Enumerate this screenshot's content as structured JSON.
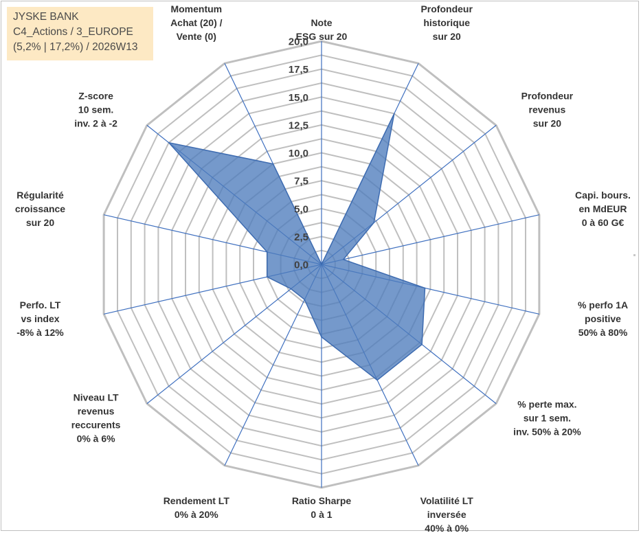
{
  "info": {
    "line1": "JYSKE BANK",
    "line2": "C4_Actions / 3_EUROPE",
    "line3": "(5,2% | 17,2%) / 2026W13"
  },
  "colors": {
    "fill": "#4e7cbd",
    "edge": "#3d6bb0",
    "spokes": "#3e6fbf",
    "rings": "#bfbfbf",
    "info_bg": "#fde9c4"
  },
  "chart_data": {
    "type": "radar",
    "title": "",
    "rmin": 0,
    "rmax": 20,
    "ticks": [
      "0,0",
      "2,5",
      "5,0",
      "7,5",
      "10,0",
      "12,5",
      "15,0",
      "17,5",
      "20,0"
    ],
    "tick_values": [
      0,
      2.5,
      5,
      7.5,
      10,
      12.5,
      15,
      17.5,
      20
    ],
    "categories": [
      [
        "Note",
        "ESG sur 20"
      ],
      [
        "Profondeur",
        "historique",
        "sur 20"
      ],
      [
        "Profondeur",
        "revenus",
        "sur 20"
      ],
      [
        "Capi. bours.",
        "en MdEUR",
        "0 à 60 G€"
      ],
      [
        "% perfo 1A",
        "positive",
        "50% à 80%"
      ],
      [
        "% perte max.",
        "sur 1 sem.",
        "inv. 50% à 20%"
      ],
      [
        "Volatilité LT",
        "inversée",
        "40% à 0%"
      ],
      [
        "Ratio Sharpe",
        "0 à 1"
      ],
      [
        "Rendement LT",
        "0% à 20%"
      ],
      [
        "Niveau LT",
        "revenus",
        "reccurents",
        "0% à 6%"
      ],
      [
        "Perfo. LT",
        "vs index",
        "-8% à 12%"
      ],
      [
        "Régularité",
        "croissance",
        "sur 20"
      ],
      [
        "Z-score",
        "10 sem.",
        "inv. 2 à -2"
      ],
      [
        "Momentum",
        "Achat (20) /",
        "Vente (0)"
      ]
    ],
    "series": [
      {
        "name": "JYSKE BANK",
        "values": [
          0,
          15,
          6,
          2,
          9.5,
          11.5,
          11.5,
          6.5,
          3.5,
          3.5,
          5,
          5,
          17.5,
          10
        ]
      }
    ]
  }
}
